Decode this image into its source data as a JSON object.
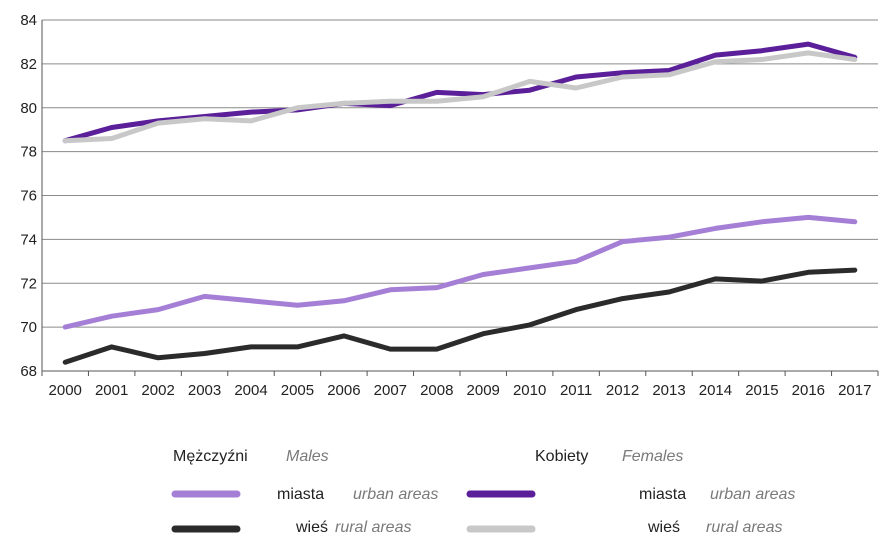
{
  "chart_data": {
    "type": "line",
    "x": [
      2000,
      2001,
      2002,
      2003,
      2004,
      2005,
      2006,
      2007,
      2008,
      2009,
      2010,
      2011,
      2012,
      2013,
      2014,
      2015,
      2016,
      2017
    ],
    "x_tick_labels": [
      "2000",
      "2001",
      "2002",
      "2003",
      "2004",
      "2005",
      "2006",
      "2007",
      "2008",
      "2009",
      "2010",
      "2011",
      "2012",
      "2013",
      "2014",
      "2015",
      "2016",
      "2017"
    ],
    "ylim": [
      68,
      84
    ],
    "y_ticks": [
      68,
      70,
      72,
      74,
      76,
      78,
      80,
      82,
      84
    ],
    "grid": true,
    "series": [
      {
        "name": "Kobiety miasta",
        "color": "#5a1f99",
        "values": [
          78.5,
          79.1,
          79.4,
          79.6,
          79.8,
          79.9,
          80.2,
          80.1,
          80.7,
          80.6,
          80.8,
          81.4,
          81.6,
          81.7,
          82.4,
          82.6,
          82.9,
          82.3
        ]
      },
      {
        "name": "Kobiety wieś",
        "color": "#c8c8c8",
        "values": [
          78.5,
          78.6,
          79.3,
          79.5,
          79.4,
          80.0,
          80.2,
          80.3,
          80.3,
          80.5,
          81.2,
          80.9,
          81.4,
          81.5,
          82.1,
          82.2,
          82.5,
          82.2
        ]
      },
      {
        "name": "Mężczyźni miasta",
        "color": "#a57fd6",
        "values": [
          70.0,
          70.5,
          70.8,
          71.4,
          71.2,
          71.0,
          71.2,
          71.7,
          71.8,
          72.4,
          72.7,
          73.0,
          73.9,
          74.1,
          74.5,
          74.8,
          75.0,
          74.8
        ]
      },
      {
        "name": "Mężczyźni wieś",
        "color": "#2b2b2b",
        "values": [
          68.4,
          69.1,
          68.6,
          68.8,
          69.1,
          69.1,
          69.6,
          69.0,
          69.0,
          69.7,
          70.1,
          70.8,
          71.3,
          71.6,
          72.2,
          72.1,
          72.5,
          72.6
        ]
      }
    ]
  },
  "legend": {
    "males_label": "Mężczyźni",
    "males_sub": "Males",
    "females_label": "Kobiety",
    "females_sub": "Females",
    "urban_label": "miasta",
    "urban_sub": "urban areas",
    "rural_label": "wieś",
    "rural_sub": "rural areas",
    "males_urban_color": "#a57fd6",
    "males_rural_color": "#2b2b2b",
    "females_urban_color": "#5a1f99",
    "females_rural_color": "#c8c8c8"
  }
}
